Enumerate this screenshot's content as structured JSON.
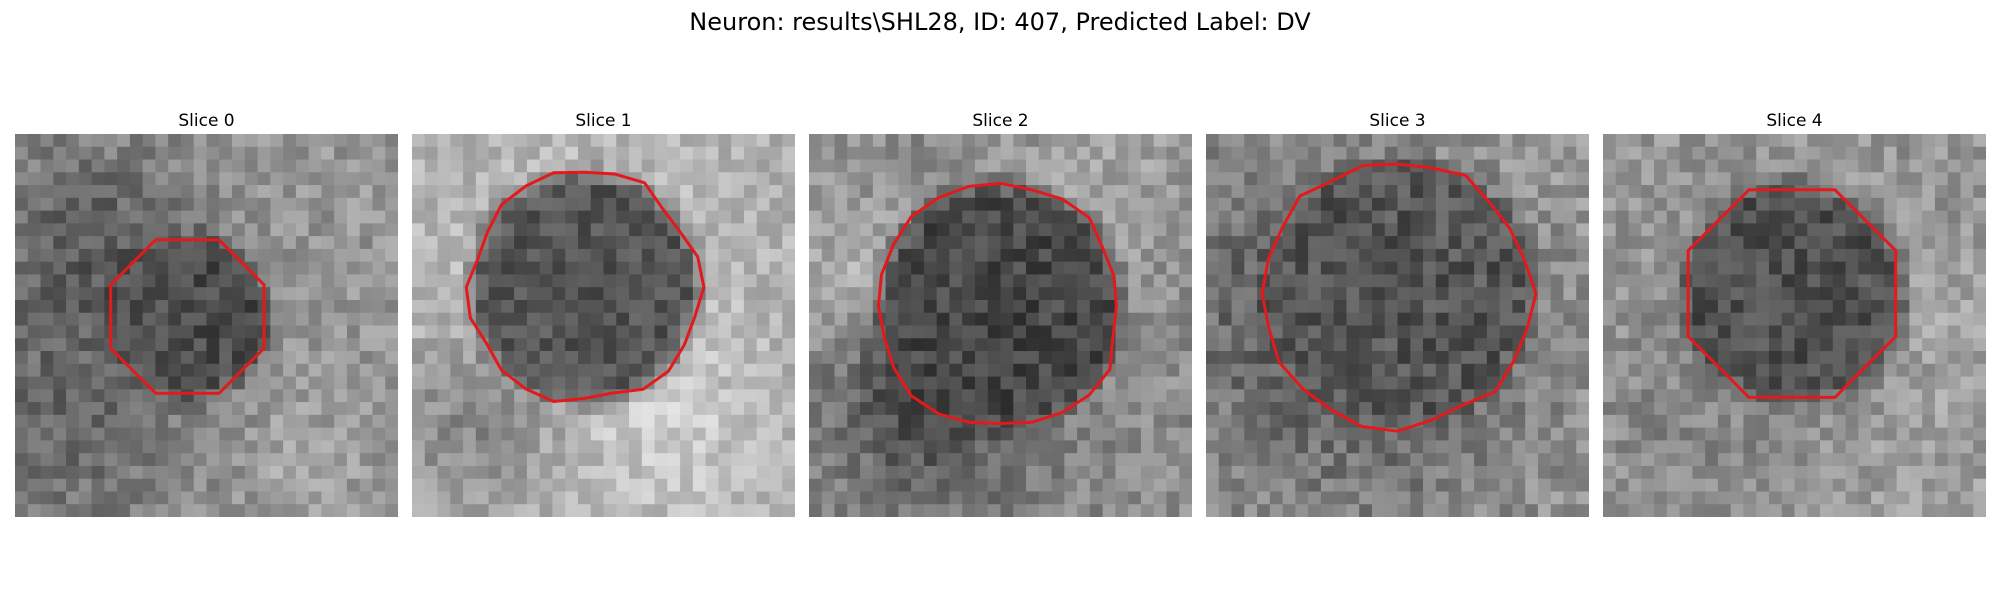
{
  "figure": {
    "title": "Neuron: results\\SHL28, ID: 407, Predicted Label: DV"
  },
  "slices": [
    {
      "title": "Slice 0",
      "contour_color": "#e31a1c"
    },
    {
      "title": "Slice 1",
      "contour_color": "#e31a1c"
    },
    {
      "title": "Slice 2",
      "contour_color": "#e31a1c"
    },
    {
      "title": "Slice 3",
      "contour_color": "#e31a1c"
    },
    {
      "title": "Slice 4",
      "contour_color": "#e31a1c"
    }
  ],
  "colors": {
    "background": "#ffffff",
    "contour": "#e31a1c"
  }
}
